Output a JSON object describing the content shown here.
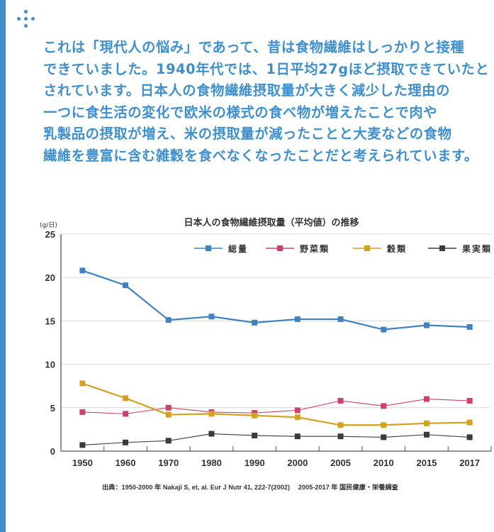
{
  "decoration": {
    "side_bar_color": "#3f8fcd",
    "icon": "dots-cross-icon"
  },
  "intro_text": "これは「現代人の悩み」であって、昔は食物繊維はしっかりと接種\nできていました。1940年代では、1日平均27gほど摂取できていたと\nされています。日本人の食物繊維摂取量が大きく減少した理由の\n一つに食生活の変化で欧米の様式の食べ物が増えたことで肉や\n乳製品の摂取が増え、米の摂取量が減ったことと大麦などの食物\n繊維を豊富に含む雑穀を食べなくなったことだと考えられています。",
  "chart_data": {
    "type": "line",
    "title": "日本人の食物繊維摂取量（平均値）の推移",
    "ylabel": "(g/日)",
    "xlabel": "",
    "categories": [
      "1950",
      "1960",
      "1970",
      "1980",
      "1990",
      "2000",
      "2005",
      "2010",
      "2015",
      "2017"
    ],
    "ylim": [
      0,
      25
    ],
    "yticks": [
      0,
      5,
      10,
      15,
      20,
      25
    ],
    "grid": true,
    "legend_position": "top-right",
    "series": [
      {
        "name": "総量",
        "color": "#3f82bf",
        "values": [
          20.8,
          19.1,
          15.1,
          15.5,
          14.8,
          15.2,
          15.2,
          14.0,
          14.5,
          14.3
        ]
      },
      {
        "name": "野菜類",
        "color": "#c8426f",
        "values": [
          4.5,
          4.3,
          5.0,
          4.5,
          4.4,
          4.7,
          5.8,
          5.2,
          6.0,
          5.8
        ]
      },
      {
        "name": "穀類",
        "color": "#d4a121",
        "values": [
          7.8,
          6.1,
          4.2,
          4.3,
          4.1,
          3.9,
          3.0,
          3.0,
          3.2,
          3.3
        ]
      },
      {
        "name": "果実類",
        "color": "#3a3a3a",
        "values": [
          0.7,
          1.0,
          1.2,
          2.0,
          1.8,
          1.7,
          1.7,
          1.6,
          1.9,
          1.6
        ]
      }
    ]
  },
  "source_text": "出典：1950-2000 年 Nakaji S,  et, al. Eur J Nutr 41, 222-7(2002)　 2005-2017 年 国民健康・栄養調査"
}
